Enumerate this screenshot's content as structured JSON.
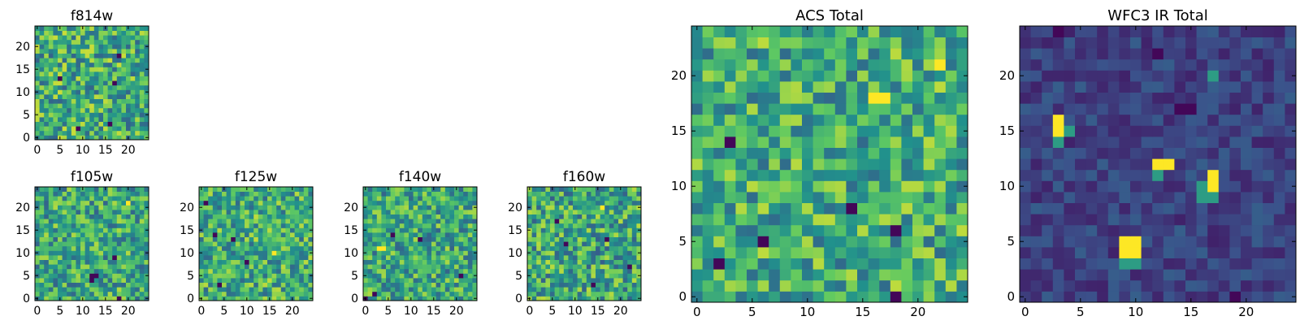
{
  "figure_type": "grid of heatmap image panels (imshow)",
  "colormap_name": "viridis",
  "colormap": [
    "#440154",
    "#3b528b",
    "#21918c",
    "#5ec962",
    "#fde725"
  ],
  "chart_data": [
    {
      "type": "heatmap",
      "title": "f814w",
      "grid_size": [
        25,
        25
      ],
      "xticks": [
        0,
        5,
        10,
        15,
        20
      ],
      "yticks": [
        0,
        5,
        10,
        15,
        20
      ],
      "xlim": [
        -0.5,
        24.5
      ],
      "ylim": [
        -0.5,
        24.5
      ],
      "value_range": [
        0,
        1
      ],
      "seed": 814,
      "mean_level": 0.62,
      "spread": 0.3,
      "dark_cells": [
        [
          5,
          13
        ],
        [
          17,
          12
        ],
        [
          16,
          3
        ],
        [
          18,
          18
        ],
        [
          9,
          2
        ]
      ],
      "bright_cells": []
    },
    {
      "type": "heatmap",
      "title": "f105w",
      "grid_size": [
        25,
        25
      ],
      "xticks": [
        0,
        5,
        10,
        15,
        20
      ],
      "yticks": [
        0,
        5,
        10,
        15,
        20
      ],
      "xlim": [
        -0.5,
        24.5
      ],
      "ylim": [
        -0.5,
        24.5
      ],
      "value_range": [
        0,
        1
      ],
      "seed": 105,
      "mean_level": 0.6,
      "spread": 0.28,
      "dark_cells": [
        [
          12,
          5
        ],
        [
          13,
          5
        ],
        [
          12,
          4
        ],
        [
          18,
          0
        ],
        [
          17,
          9
        ]
      ],
      "bright_cells": [
        [
          20,
          21
        ]
      ]
    },
    {
      "type": "heatmap",
      "title": "f125w",
      "grid_size": [
        25,
        25
      ],
      "xticks": [
        0,
        5,
        10,
        15,
        20
      ],
      "yticks": [
        0,
        5,
        10,
        15,
        20
      ],
      "xlim": [
        -0.5,
        24.5
      ],
      "ylim": [
        -0.5,
        24.5
      ],
      "value_range": [
        0,
        1
      ],
      "seed": 125,
      "mean_level": 0.62,
      "spread": 0.28,
      "dark_cells": [
        [
          1,
          21
        ],
        [
          3,
          14
        ],
        [
          7,
          13
        ],
        [
          10,
          8
        ],
        [
          4,
          3
        ]
      ],
      "bright_cells": [
        [
          16,
          10
        ]
      ]
    },
    {
      "type": "heatmap",
      "title": "f140w",
      "grid_size": [
        25,
        25
      ],
      "xticks": [
        0,
        5,
        10,
        15,
        20
      ],
      "yticks": [
        0,
        5,
        10,
        15,
        20
      ],
      "xlim": [
        -0.5,
        24.5
      ],
      "ylim": [
        -0.5,
        24.5
      ],
      "value_range": [
        0,
        1
      ],
      "seed": 140,
      "mean_level": 0.6,
      "spread": 0.28,
      "dark_cells": [
        [
          2,
          1
        ],
        [
          0,
          0
        ],
        [
          12,
          13
        ],
        [
          6,
          14
        ],
        [
          21,
          5
        ]
      ],
      "bright_cells": [
        [
          3,
          11
        ],
        [
          4,
          11
        ]
      ]
    },
    {
      "type": "heatmap",
      "title": "f160w",
      "grid_size": [
        25,
        25
      ],
      "xticks": [
        0,
        5,
        10,
        15,
        20
      ],
      "yticks": [
        0,
        5,
        10,
        15,
        20
      ],
      "xlim": [
        -0.5,
        24.5
      ],
      "ylim": [
        -0.5,
        24.5
      ],
      "value_range": [
        0,
        1
      ],
      "seed": 160,
      "mean_level": 0.6,
      "spread": 0.3,
      "dark_cells": [
        [
          17,
          13
        ],
        [
          8,
          12
        ],
        [
          14,
          3
        ],
        [
          22,
          7
        ],
        [
          6,
          17
        ]
      ],
      "bright_cells": [
        [
          16,
          20
        ]
      ]
    },
    {
      "type": "heatmap",
      "title": "ACS Total",
      "grid_size": [
        25,
        25
      ],
      "xticks": [
        0,
        5,
        10,
        15,
        20
      ],
      "yticks": [
        0,
        5,
        10,
        15,
        20
      ],
      "xlim": [
        -0.5,
        24.5
      ],
      "ylim": [
        -0.5,
        24.5
      ],
      "value_range": [
        0,
        1
      ],
      "seed": 2001,
      "mean_level": 0.62,
      "spread": 0.28,
      "dark_cells": [
        [
          14,
          8
        ],
        [
          18,
          6
        ],
        [
          18,
          0
        ],
        [
          6,
          5
        ],
        [
          2,
          3
        ],
        [
          3,
          14
        ]
      ],
      "bright_cells": [
        [
          22,
          21
        ],
        [
          16,
          18
        ],
        [
          17,
          18
        ]
      ]
    },
    {
      "type": "heatmap",
      "title": "WFC3 IR Total",
      "grid_size": [
        25,
        25
      ],
      "xticks": [
        0,
        5,
        10,
        15,
        20
      ],
      "yticks": [
        0,
        5,
        10,
        15,
        20
      ],
      "xlim": [
        -0.5,
        24.5
      ],
      "ylim": [
        -0.5,
        24.5
      ],
      "value_range": [
        0,
        1
      ],
      "seed": 3003,
      "mean_level": 0.2,
      "spread": 0.1,
      "dark_cells": [
        [
          3,
          24
        ],
        [
          14,
          17
        ],
        [
          15,
          17
        ],
        [
          12,
          22
        ],
        [
          19,
          0
        ]
      ],
      "bright_cells": [
        [
          3,
          16
        ],
        [
          3,
          15
        ],
        [
          12,
          12
        ],
        [
          13,
          12
        ],
        [
          17,
          11
        ],
        [
          17,
          10
        ],
        [
          9,
          5
        ],
        [
          10,
          5
        ],
        [
          9,
          4
        ],
        [
          10,
          4
        ]
      ],
      "mid_cells": [
        [
          4,
          15
        ],
        [
          12,
          11
        ],
        [
          16,
          10
        ],
        [
          16,
          9
        ],
        [
          17,
          9
        ],
        [
          10,
          3
        ],
        [
          9,
          3
        ],
        [
          3,
          14
        ],
        [
          17,
          20
        ]
      ]
    }
  ]
}
